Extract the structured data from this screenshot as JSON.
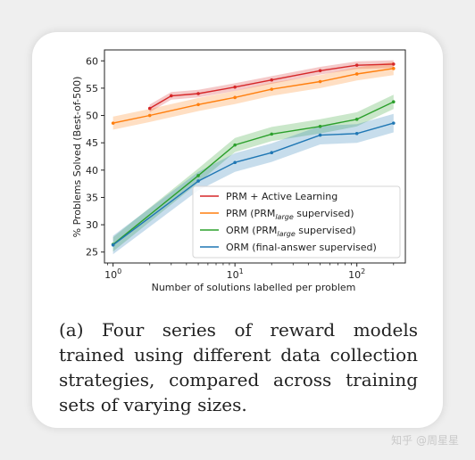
{
  "chart_data": {
    "type": "line",
    "xscale": "log",
    "xlim": [
      0.85,
      250
    ],
    "ylim": [
      23,
      62
    ],
    "xlabel": "Number of solutions labelled per problem",
    "ylabel": "% Problems Solved (Best-of-500)",
    "x_ticks": [
      1,
      10,
      100
    ],
    "x_tick_labels": [
      "10^0",
      "10^1",
      "10^2"
    ],
    "y_ticks": [
      25,
      30,
      35,
      40,
      45,
      50,
      55,
      60
    ],
    "legend_position": "lower-right",
    "series": [
      {
        "name": "PRM + Active Learning",
        "color": "#d62728",
        "x": [
          2,
          3,
          5,
          10,
          20,
          50,
          100,
          200
        ],
        "y": [
          51.3,
          53.6,
          54.0,
          55.2,
          56.5,
          58.2,
          59.2,
          59.4
        ],
        "band": 0.7
      },
      {
        "name": "PRM (PRMlarge supervised)",
        "name_parts": [
          "PRM (PRM",
          "large",
          " supervised)"
        ],
        "color": "#ff7f0e",
        "x": [
          1,
          2,
          5,
          10,
          20,
          50,
          100,
          200
        ],
        "y": [
          48.6,
          50.0,
          52.0,
          53.3,
          54.8,
          56.2,
          57.6,
          58.6
        ],
        "band": 1.2
      },
      {
        "name": "ORM (PRMlarge supervised)",
        "name_parts": [
          "ORM (PRM",
          "large",
          " supervised)"
        ],
        "color": "#2ca02c",
        "x": [
          1,
          5,
          10,
          20,
          50,
          100,
          200
        ],
        "y": [
          26.4,
          39.0,
          44.6,
          46.6,
          48.0,
          49.3,
          52.5
        ],
        "band": 1.3
      },
      {
        "name": "ORM (final-answer supervised)",
        "color": "#1f77b4",
        "x": [
          1,
          5,
          10,
          20,
          50,
          100,
          200
        ],
        "y": [
          26.3,
          38.0,
          41.4,
          43.2,
          46.4,
          46.7,
          48.6
        ],
        "band": 1.7
      }
    ]
  },
  "caption": "(a) Four series of reward models trained using different data collection strategies, compared across training sets of varying sizes.",
  "watermark": "知乎 @周星星"
}
